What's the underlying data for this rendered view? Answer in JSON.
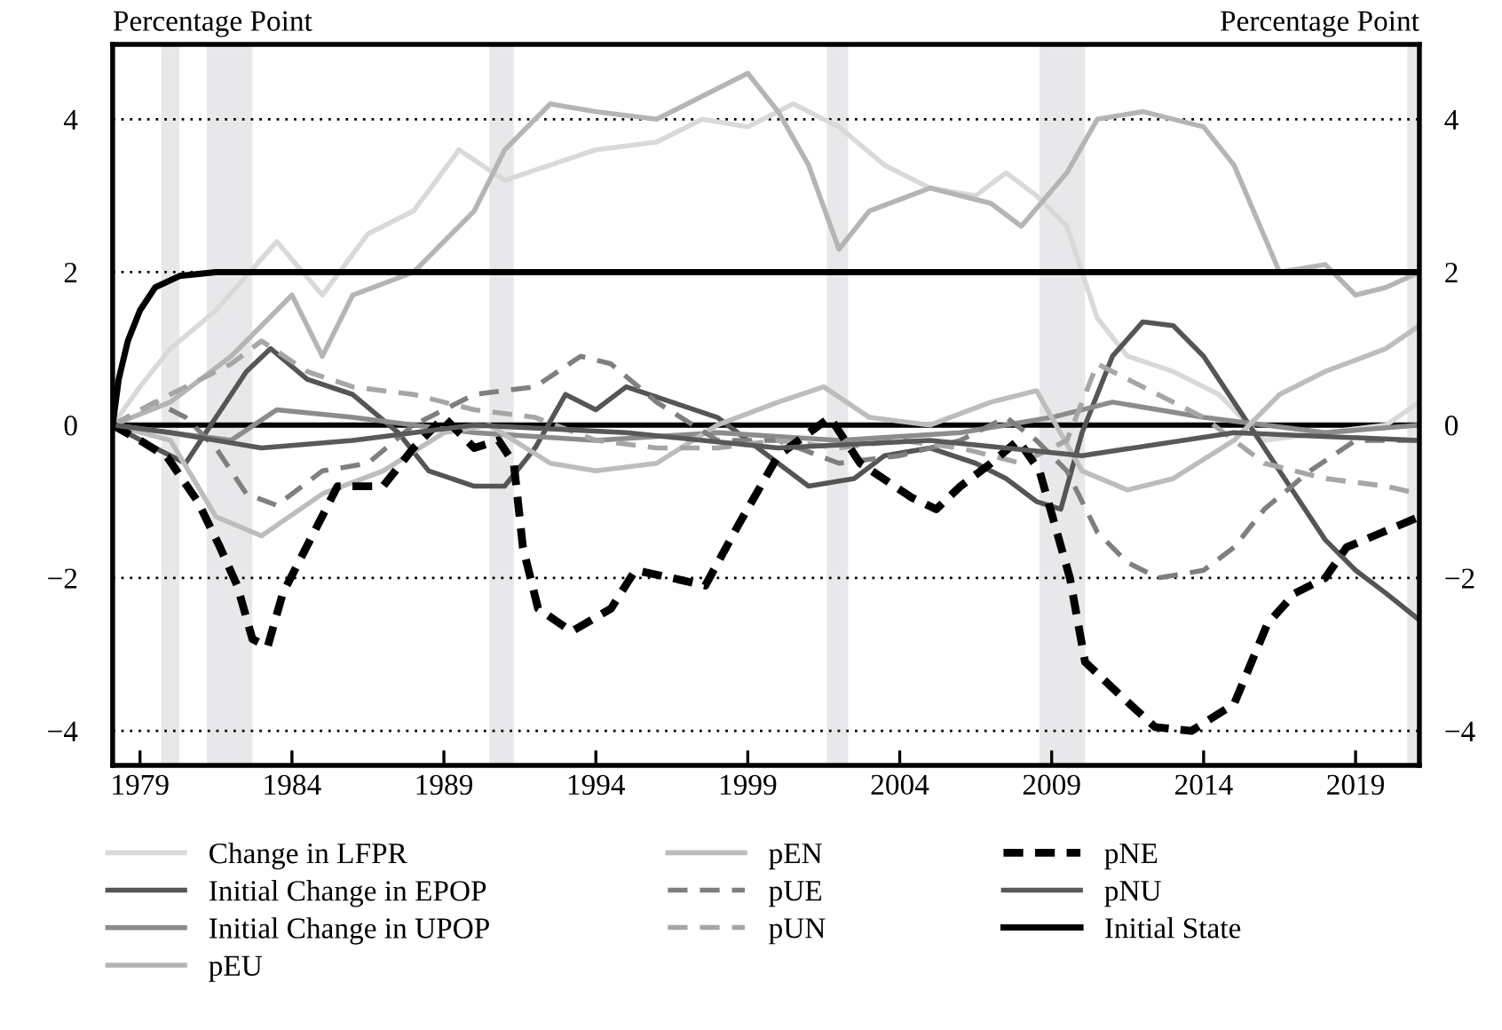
{
  "chart_data": {
    "type": "line",
    "ylabel": "Percentage Point",
    "y2label": "Percentage Point",
    "xlim": [
      1978.1,
      2021.1
    ],
    "xticks": [
      1979,
      1984,
      1989,
      1994,
      1999,
      2004,
      2009,
      2014,
      2019
    ],
    "ylim": [
      -4.45,
      4.98
    ],
    "yticks": [
      {
        "value": -4,
        "label": "−4"
      },
      {
        "value": -2,
        "label": "−2"
      },
      0,
      2,
      4
    ],
    "y2lim": [
      -4.45,
      4.98
    ],
    "y2ticks": [
      {
        "value": -4,
        "label": "−4"
      },
      {
        "value": -2,
        "label": "−2"
      },
      0,
      2,
      4
    ],
    "grid": "y",
    "legend": "bottom",
    "marker": "none",
    "ref_lines": [
      {
        "axis": "y",
        "value": 0,
        "color": "#000000",
        "line_style": "solid"
      }
    ],
    "bands": [
      {
        "axis": "x",
        "from": 1979.7,
        "to": 1980.3,
        "color": "#e8e8ea"
      },
      {
        "axis": "x",
        "from": 1981.2,
        "to": 1982.7,
        "color": "#e8e8ea"
      },
      {
        "axis": "x",
        "from": 1990.5,
        "to": 1991.3,
        "color": "#e8e8ea"
      },
      {
        "axis": "x",
        "from": 2001.6,
        "to": 2002.3,
        "color": "#e8e8ea"
      },
      {
        "axis": "x",
        "from": 2008.6,
        "to": 2010.1,
        "color": "#e8e8ea"
      },
      {
        "axis": "x",
        "from": 2020.7,
        "to": 2021.1,
        "color": "#e8e8ea"
      }
    ],
    "series": [
      {
        "name": "Change in LFPR",
        "color": "#d9d9d9",
        "line_style": "solid",
        "x": [
          1978.1,
          1979,
          1980,
          1981.5,
          1983.5,
          1985,
          1986.5,
          1988,
          1989.5,
          1991,
          1992.5,
          1994,
          1996,
          1997.5,
          1999,
          2000.5,
          2002,
          2003.5,
          2005,
          2006.5,
          2007.5,
          2008.5,
          2009.5,
          2010.5,
          2011.5,
          2013,
          2014.5,
          2016,
          2018,
          2020,
          2021.1
        ],
        "values": [
          0,
          0.5,
          1.0,
          1.5,
          2.4,
          1.7,
          2.5,
          2.8,
          3.6,
          3.2,
          3.4,
          3.6,
          3.7,
          4.0,
          3.9,
          4.2,
          3.9,
          3.4,
          3.1,
          3.0,
          3.3,
          3.0,
          2.6,
          1.4,
          0.9,
          0.7,
          0.4,
          -0.2,
          -0.1,
          0.0,
          0.3
        ]
      },
      {
        "name": "Initial Change in EPOP",
        "color": "#555555",
        "line_style": "solid",
        "x": [
          1978.1,
          1979.5,
          1980.5,
          1981.5,
          1982.5,
          1983.3,
          1984.5,
          1986,
          1987.5,
          1988.5,
          1990,
          1991,
          1992,
          1993,
          1994,
          1995,
          1996.5,
          1998,
          1999,
          2001,
          2002.5,
          2003.5,
          2005,
          2006.5,
          2007.5,
          2008.5,
          2009.3,
          2010,
          2011,
          2012,
          2013,
          2014,
          2015,
          2016,
          2017,
          2018,
          2019,
          2020,
          2021.1
        ],
        "values": [
          0,
          -0.3,
          -0.5,
          0.1,
          0.7,
          1.0,
          0.6,
          0.4,
          -0.1,
          -0.6,
          -0.8,
          -0.8,
          -0.3,
          0.4,
          0.2,
          0.5,
          0.3,
          0.1,
          -0.2,
          -0.8,
          -0.7,
          -0.4,
          -0.3,
          -0.5,
          -0.7,
          -1.0,
          -1.1,
          -0.1,
          0.9,
          1.35,
          1.3,
          0.9,
          0.3,
          -0.3,
          -0.9,
          -1.5,
          -1.9,
          -2.2,
          -2.55
        ]
      },
      {
        "name": "Initial Change in UPOP",
        "color": "#8c8c8c",
        "line_style": "solid",
        "x": [
          1978.1,
          1980,
          1982,
          1983.5,
          1986,
          1990,
          1994,
          1998,
          2002,
          2006,
          2009,
          2011,
          2014,
          2018,
          2021.1
        ],
        "values": [
          0,
          -0.1,
          -0.2,
          0.2,
          0.1,
          -0.1,
          -0.2,
          -0.1,
          -0.2,
          -0.1,
          0.1,
          0.3,
          0.1,
          -0.1,
          0.0
        ]
      },
      {
        "name": "pEU",
        "color": "#b5b5b5",
        "line_style": "solid",
        "x": [
          1978.1,
          1980,
          1982,
          1984,
          1985,
          1986,
          1988,
          1990,
          1991,
          1992.5,
          1994,
          1996,
          1998,
          1999,
          2000,
          2001,
          2002,
          2003,
          2005,
          2007,
          2008,
          2009.5,
          2010.5,
          2012,
          2014,
          2015,
          2016.5,
          2018,
          2019,
          2020,
          2021.1
        ],
        "values": [
          0.0,
          0.3,
          0.9,
          1.7,
          0.9,
          1.7,
          2.0,
          2.8,
          3.6,
          4.2,
          4.1,
          4.0,
          4.4,
          4.6,
          4.1,
          3.4,
          2.3,
          2.8,
          3.1,
          2.9,
          2.6,
          3.3,
          4.0,
          4.1,
          3.9,
          3.4,
          2.0,
          2.1,
          1.7,
          1.8,
          2.0
        ]
      },
      {
        "name": "pEN",
        "color": "#bdbdbd",
        "line_style": "solid",
        "x": [
          1978.1,
          1980,
          1981.5,
          1983,
          1985,
          1987,
          1989,
          1990.5,
          1992.5,
          1994,
          1996,
          1998,
          2000,
          2001.5,
          2003,
          2005,
          2007,
          2008.5,
          2010,
          2011.5,
          2013,
          2015,
          2016.5,
          2018,
          2020,
          2021.1
        ],
        "values": [
          0,
          -0.2,
          -1.2,
          -1.45,
          -0.9,
          -0.6,
          -0.1,
          0.0,
          -0.5,
          -0.6,
          -0.5,
          0.0,
          0.3,
          0.5,
          0.1,
          0.0,
          0.3,
          0.45,
          -0.6,
          -0.85,
          -0.7,
          -0.2,
          0.4,
          0.7,
          1.0,
          1.3
        ]
      },
      {
        "name": "pUE",
        "color": "#7f7f7f",
        "line_style": "dashed",
        "x": [
          1978.1,
          1979.5,
          1980.5,
          1981.5,
          1982.5,
          1983.5,
          1985,
          1986.5,
          1988,
          1990,
          1992,
          1993.5,
          1994.5,
          1996,
          1998,
          2000,
          2002,
          2004,
          2006,
          2007.5,
          2008.5,
          2009.5,
          2010.5,
          2011.5,
          2012.5,
          2014,
          2015,
          2016,
          2017.5,
          2019,
          2021.1
        ],
        "values": [
          0,
          0.3,
          0.1,
          -0.3,
          -0.9,
          -1.05,
          -0.6,
          -0.5,
          0.0,
          0.4,
          0.5,
          0.9,
          0.8,
          0.3,
          -0.2,
          -0.2,
          -0.5,
          -0.4,
          -0.2,
          0.1,
          -0.2,
          -0.6,
          -1.4,
          -1.8,
          -2.0,
          -1.9,
          -1.6,
          -1.1,
          -0.6,
          -0.2,
          -0.2
        ]
      },
      {
        "name": "pUN",
        "color": "#a6a6a6",
        "line_style": "dashed",
        "x": [
          1978.1,
          1980,
          1982,
          1983,
          1984.5,
          1986,
          1988,
          1990,
          1992,
          1994,
          1996,
          1998,
          2000,
          2002,
          2004,
          2006,
          2008,
          2009.5,
          2010.5,
          2012,
          2014,
          2016,
          2018,
          2020,
          2021.1
        ],
        "values": [
          0,
          0.4,
          0.8,
          1.1,
          0.7,
          0.5,
          0.4,
          0.2,
          0.1,
          -0.2,
          -0.3,
          -0.3,
          -0.2,
          -0.3,
          -0.2,
          -0.3,
          -0.5,
          -0.2,
          0.8,
          0.5,
          0.1,
          -0.5,
          -0.7,
          -0.8,
          -0.9
        ]
      },
      {
        "name": "pNE",
        "color": "#000000",
        "line_style": "dashed",
        "x": [
          1978.1,
          1979,
          1979.9,
          1980.9,
          1981.6,
          1982.2,
          1982.7,
          1983.2,
          1983.7,
          1984.6,
          1985.5,
          1987,
          1988,
          1989,
          1990,
          1990.8,
          1991.3,
          1991.6,
          1992.1,
          1993.2,
          1994.5,
          1995.3,
          1996.5,
          1997.6,
          1998.7,
          2000,
          2001.7,
          2002.7,
          2004.4,
          2005.2,
          2006,
          2007,
          2007.9,
          2008.6,
          2009.6,
          2010.1,
          2011.3,
          2012.4,
          2013.6,
          2015,
          2016.1,
          2017,
          2018,
          2018.7,
          2019.9,
          2021.1
        ],
        "values": [
          0,
          -0.2,
          -0.42,
          -1.0,
          -1.57,
          -2.1,
          -2.8,
          -2.9,
          -2.2,
          -1.5,
          -0.8,
          -0.8,
          -0.3,
          0.1,
          -0.3,
          -0.2,
          -0.5,
          -1.6,
          -2.4,
          -2.7,
          -2.4,
          -1.9,
          -2.0,
          -2.1,
          -1.3,
          -0.4,
          0.1,
          -0.5,
          -0.95,
          -1.1,
          -0.8,
          -0.5,
          -0.2,
          -0.6,
          -2.0,
          -3.1,
          -3.55,
          -3.95,
          -4.0,
          -3.65,
          -2.6,
          -2.2,
          -2.0,
          -1.6,
          -1.4,
          -1.2
        ]
      },
      {
        "name": "pNU",
        "color": "#595959",
        "line_style": "solid",
        "x": [
          1978.1,
          1980,
          1983,
          1986,
          1990,
          1995,
          2000,
          2005,
          2010,
          2015,
          2021.1
        ],
        "values": [
          0,
          -0.1,
          -0.3,
          -0.2,
          0.0,
          -0.1,
          -0.3,
          -0.2,
          -0.4,
          -0.1,
          -0.2
        ]
      },
      {
        "name": "Initial State",
        "color": "#000000",
        "line_style": "solid",
        "x": [
          1978.1,
          1978.3,
          1978.6,
          1979,
          1979.5,
          1980.3,
          1981.5,
          1983,
          2000,
          2021.1
        ],
        "values": [
          0,
          0.6,
          1.1,
          1.5,
          1.8,
          1.95,
          2.0,
          2.0,
          2.0,
          2.0
        ]
      }
    ]
  }
}
